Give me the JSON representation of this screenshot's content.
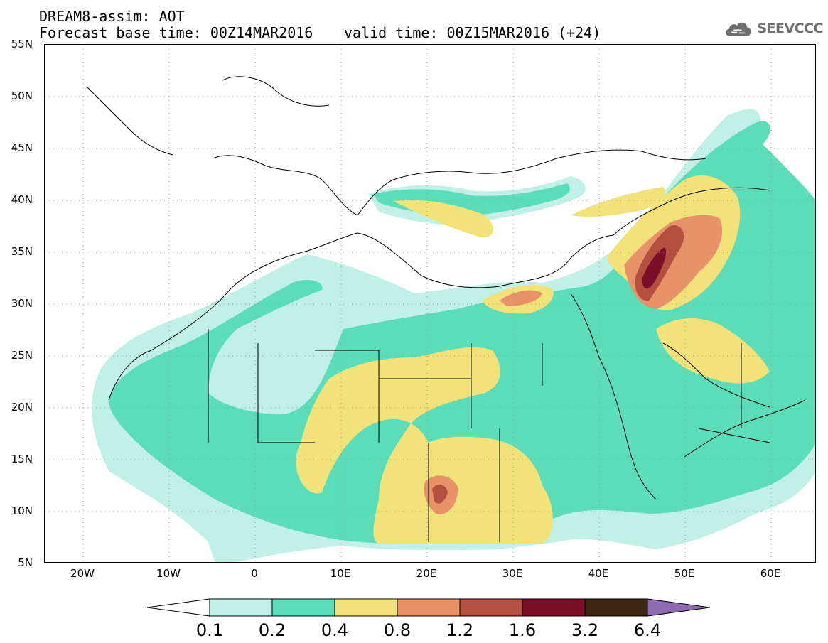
{
  "title": {
    "line1": "DREAM8-assim: AOT",
    "base_time": "Forecast base time: 00Z14MAR2016",
    "valid_time": "valid time: 00Z15MAR2016 (+24)"
  },
  "logo": {
    "text": "SEEVCCC",
    "icon": "cloud-icon"
  },
  "axes": {
    "lat_labels": [
      "55N",
      "50N",
      "45N",
      "40N",
      "35N",
      "30N",
      "25N",
      "20N",
      "15N",
      "10N",
      "5N"
    ],
    "lon_labels": [
      "20W",
      "10W",
      "0",
      "10E",
      "20E",
      "30E",
      "40E",
      "50E",
      "60E"
    ],
    "lon_range": [
      -25,
      65
    ],
    "lat_range": [
      5,
      55
    ]
  },
  "colorbar": {
    "labels": [
      "0.1",
      "0.2",
      "0.4",
      "0.8",
      "1.2",
      "1.6",
      "3.2",
      "6.4"
    ],
    "colors": [
      "#ffffff",
      "#c1f0e6",
      "#5ddcb8",
      "#f2e27a",
      "#e8926a",
      "#b2513f",
      "#7a0f2a",
      "#3d2614",
      "#8e6bb0"
    ]
  }
}
